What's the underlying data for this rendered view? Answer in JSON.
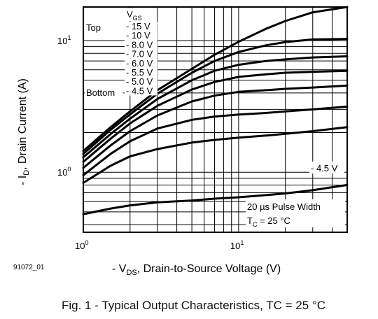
{
  "figure_id": "91072_01",
  "caption": "Fig. 1 - Typical Output Characteristics, TC = 25 °C",
  "chart_data": {
    "type": "line",
    "x_scale": "log",
    "y_scale": "log",
    "xlim": [
      1,
      50
    ],
    "ylim": [
      0.35,
      18
    ],
    "x_ticks": [
      {
        "value": 1,
        "label": "10",
        "exp": "0"
      },
      {
        "value": 10,
        "label": "10",
        "exp": "1"
      }
    ],
    "y_ticks": [
      {
        "value": 1,
        "label": "10",
        "exp": "0"
      },
      {
        "value": 10,
        "label": "10",
        "exp": "1"
      }
    ],
    "xlabel": {
      "prefix": "- V",
      "sub": "DS",
      "suffix": ", Drain-to-Source Voltage (V)"
    },
    "ylabel": {
      "prefix": "- I",
      "sub": "D",
      "suffix": ", Drain Current (A)"
    },
    "legend": {
      "header_prefix": "V",
      "header_sub": "GS",
      "top_label": "Top",
      "bottom_label": "Bottom",
      "entries": [
        "- 15 V",
        "- 10 V",
        "- 8.0 V",
        "- 7.0 V",
        "- 6.0 V",
        "- 5.5 V",
        "- 5.0 V",
        "- 4.5 V"
      ]
    },
    "annotations": {
      "curve_label": "- 4.5 V",
      "pulse": "20 µs Pulse Width",
      "temp_prefix": "T",
      "temp_sub": "C",
      "temp_suffix": " = 25 °C"
    },
    "series": [
      {
        "x": [
          1,
          1.5,
          2,
          3,
          5,
          7,
          10,
          15,
          20,
          30,
          50
        ],
        "y": [
          1.45,
          2.2,
          2.9,
          4.2,
          6.1,
          7.8,
          9.8,
          12.3,
          14.1,
          16.4,
          18.0
        ]
      },
      {
        "x": [
          1,
          1.5,
          2,
          3,
          5,
          7,
          10,
          15,
          20,
          30,
          50
        ],
        "y": [
          1.38,
          2.1,
          2.75,
          3.95,
          5.7,
          7.0,
          8.2,
          9.2,
          9.75,
          10.2,
          10.3
        ]
      },
      {
        "x": [
          1,
          1.5,
          2,
          3,
          5,
          7,
          10,
          15,
          20,
          30,
          50
        ],
        "y": [
          1.3,
          1.95,
          2.55,
          3.6,
          5.0,
          5.9,
          6.55,
          7.0,
          7.2,
          7.45,
          7.6
        ]
      },
      {
        "x": [
          1,
          1.5,
          2,
          3,
          5,
          7,
          10,
          15,
          20,
          30,
          50
        ],
        "y": [
          1.2,
          1.8,
          2.35,
          3.2,
          4.25,
          4.85,
          5.3,
          5.55,
          5.7,
          5.8,
          5.9
        ]
      },
      {
        "x": [
          1,
          1.5,
          2,
          3,
          5,
          7,
          10,
          15,
          20,
          30,
          50
        ],
        "y": [
          1.08,
          1.6,
          2.05,
          2.7,
          3.45,
          3.82,
          4.08,
          4.2,
          4.3,
          4.4,
          4.55
        ]
      },
      {
        "x": [
          1,
          1.5,
          2,
          3,
          5,
          7,
          10,
          15,
          20,
          30,
          50
        ],
        "y": [
          0.95,
          1.38,
          1.72,
          2.15,
          2.5,
          2.65,
          2.74,
          2.82,
          2.9,
          3.0,
          3.15
        ]
      },
      {
        "x": [
          1,
          1.5,
          2,
          3,
          5,
          7,
          10,
          15,
          20,
          30,
          50
        ],
        "y": [
          0.83,
          1.12,
          1.32,
          1.5,
          1.68,
          1.76,
          1.83,
          1.9,
          1.96,
          2.05,
          2.2
        ]
      },
      {
        "x": [
          1,
          1.5,
          2,
          3,
          5,
          7,
          10,
          15,
          20,
          30,
          50
        ],
        "y": [
          0.48,
          0.53,
          0.56,
          0.59,
          0.61,
          0.63,
          0.645,
          0.67,
          0.69,
          0.73,
          0.8
        ]
      }
    ]
  }
}
